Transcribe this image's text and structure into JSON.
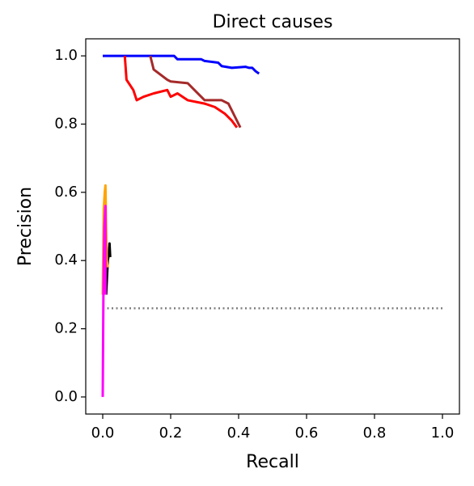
{
  "chart_data": {
    "type": "line",
    "title": "Direct causes",
    "xlabel": "Recall",
    "ylabel": "Precision",
    "xlim": [
      -0.05,
      1.05
    ],
    "ylim": [
      -0.05,
      1.05
    ],
    "xticks": [
      {
        "value": 0,
        "label": "0.0"
      },
      {
        "value": 0.2,
        "label": "0.2"
      },
      {
        "value": 0.4,
        "label": "0.4"
      },
      {
        "value": 0.6,
        "label": "0.6"
      },
      {
        "value": 0.8,
        "label": "0.8"
      },
      {
        "value": 1,
        "label": "1.0"
      }
    ],
    "yticks": [
      {
        "value": 0,
        "label": "0.0"
      },
      {
        "value": 0.2,
        "label": "0.2"
      },
      {
        "value": 0.4,
        "label": "0.4"
      },
      {
        "value": 0.6,
        "label": "0.6"
      },
      {
        "value": 0.8,
        "label": "0.8"
      },
      {
        "value": 1,
        "label": "1.0"
      }
    ],
    "grid": false,
    "series": [
      {
        "color": "#808080",
        "linestyle": "dotted",
        "x": [
          0,
          1.0
        ],
        "values": [
          0.26,
          0.26
        ]
      },
      {
        "color": "#0000ff",
        "x": [
          0,
          0.21,
          0.22,
          0.29,
          0.3,
          0.34,
          0.35,
          0.38,
          0.42,
          0.43,
          0.44,
          0.45,
          0.46
        ],
        "values": [
          1.0,
          1.0,
          0.99,
          0.99,
          0.985,
          0.98,
          0.97,
          0.965,
          0.968,
          0.965,
          0.965,
          0.955,
          0.948
        ]
      },
      {
        "color": "#a52a2a",
        "x": [
          0.14,
          0.15,
          0.19,
          0.2,
          0.25,
          0.27,
          0.3,
          0.35,
          0.37,
          0.38,
          0.39,
          0.4,
          0.405
        ],
        "values": [
          1.0,
          0.96,
          0.93,
          0.925,
          0.92,
          0.9,
          0.87,
          0.87,
          0.86,
          0.84,
          0.82,
          0.8,
          0.79
        ]
      },
      {
        "color": "#ff0000",
        "x": [
          0.065,
          0.07,
          0.09,
          0.1,
          0.12,
          0.15,
          0.19,
          0.2,
          0.22,
          0.25,
          0.3,
          0.33,
          0.36,
          0.38,
          0.395
        ],
        "values": [
          1.0,
          0.93,
          0.9,
          0.87,
          0.88,
          0.89,
          0.9,
          0.88,
          0.89,
          0.87,
          0.86,
          0.85,
          0.83,
          0.81,
          0.79
        ]
      },
      {
        "color": "#000000",
        "x": [
          0.01,
          0.015,
          0.018,
          0.02,
          0.022
        ],
        "values": [
          0.3,
          0.4,
          0.42,
          0.45,
          0.41
        ]
      },
      {
        "color": "#ffa500",
        "x": [
          0,
          0.003,
          0.006,
          0.008,
          0.01,
          0.012,
          0.015
        ],
        "values": [
          0.3,
          0.55,
          0.6,
          0.62,
          0.5,
          0.4,
          0.38
        ]
      },
      {
        "color": "#ff00ff",
        "x": [
          0,
          0.002,
          0.005,
          0.008,
          0.008
        ],
        "values": [
          0,
          0.3,
          0.5,
          0.56,
          0.3
        ]
      }
    ]
  }
}
